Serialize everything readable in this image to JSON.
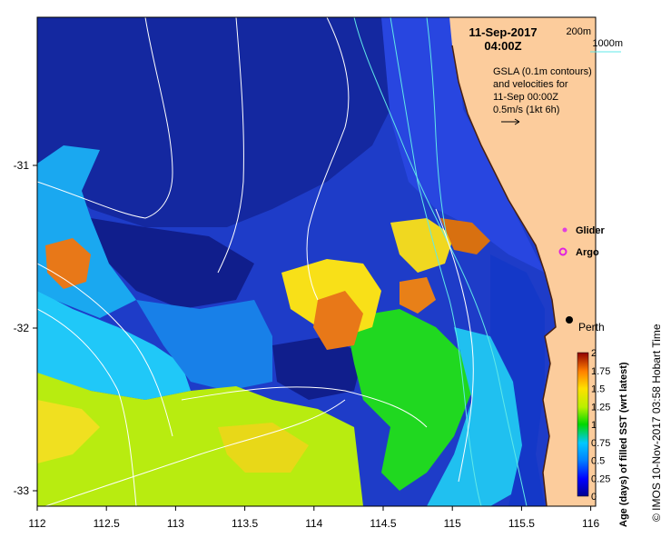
{
  "map": {
    "date": "11-Sep-2017",
    "time": "04:00Z",
    "legend_lines": [
      "GSLA (0.1m contours)",
      "and velocities for",
      "11-Sep 00:00Z",
      "0.5m/s (1kt 6h)"
    ],
    "depth_200": "200m",
    "depth_1000": "1000m",
    "glider": "Glider",
    "argo": "Argo",
    "city": "Perth",
    "credit": "© IMOS 10-Nov-2017 03:58 Hobart Time",
    "x_ticks": [
      "112",
      "112.5",
      "113",
      "113.5",
      "114",
      "114.5",
      "115",
      "115.5",
      "116"
    ],
    "y_ticks": [
      "-31",
      "-32",
      "-33"
    ],
    "colorbar": {
      "label": "Age (days) of filled SST (wrt latest)",
      "ticks": [
        "0",
        "0.25",
        "0.5",
        "0.75",
        "1",
        "1.25",
        "1.5",
        "1.75",
        "2"
      ]
    },
    "colors": {
      "land": "#fccc9c",
      "contour_200": "#60e8e8",
      "glider_marker": "#e040e0",
      "argo_marker": "#e020e0"
    }
  }
}
